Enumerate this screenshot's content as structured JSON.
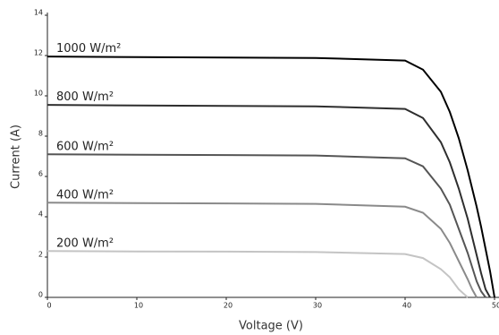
{
  "chart_data": {
    "type": "line",
    "xlabel": "Voltage (V)",
    "ylabel": "Current (A)",
    "x": [
      0,
      10,
      20,
      30,
      40,
      42,
      44,
      45,
      46,
      47,
      47.5,
      48,
      48.5,
      49,
      49.5,
      50
    ],
    "series": [
      {
        "name": "1000 W/m²",
        "color": "#000000",
        "values": [
          11.95,
          11.92,
          11.9,
          11.88,
          11.75,
          11.3,
          10.2,
          9.2,
          7.9,
          6.3,
          5.4,
          4.5,
          3.5,
          2.4,
          1.3,
          0
        ]
      },
      {
        "name": "800 W/m²",
        "color": "#2e2e2e",
        "values": [
          9.55,
          9.52,
          9.5,
          9.48,
          9.35,
          8.9,
          7.7,
          6.7,
          5.4,
          3.9,
          3.0,
          2.1,
          1.2,
          0.4,
          0,
          null
        ]
      },
      {
        "name": "600 W/m²",
        "color": "#555555",
        "values": [
          7.1,
          7.08,
          7.06,
          7.04,
          6.9,
          6.5,
          5.4,
          4.6,
          3.4,
          2.2,
          1.5,
          0.8,
          0.3,
          0,
          null,
          null
        ]
      },
      {
        "name": "400 W/m²",
        "color": "#8a8a8a",
        "values": [
          4.7,
          4.68,
          4.66,
          4.64,
          4.5,
          4.2,
          3.4,
          2.7,
          1.8,
          0.9,
          0.4,
          0,
          null,
          null,
          null,
          null
        ]
      },
      {
        "name": "200 W/m²",
        "color": "#c4c4c4",
        "values": [
          2.3,
          2.28,
          2.27,
          2.25,
          2.15,
          1.95,
          1.4,
          1.0,
          0.4,
          0,
          null,
          null,
          null,
          null,
          null,
          null
        ]
      }
    ],
    "xlim": [
      0,
      50
    ],
    "xticks": [
      0,
      10,
      20,
      30,
      40,
      50
    ],
    "ylim": [
      0,
      14
    ],
    "yticks": [
      0,
      2,
      4,
      6,
      8,
      10,
      12,
      14
    ]
  }
}
